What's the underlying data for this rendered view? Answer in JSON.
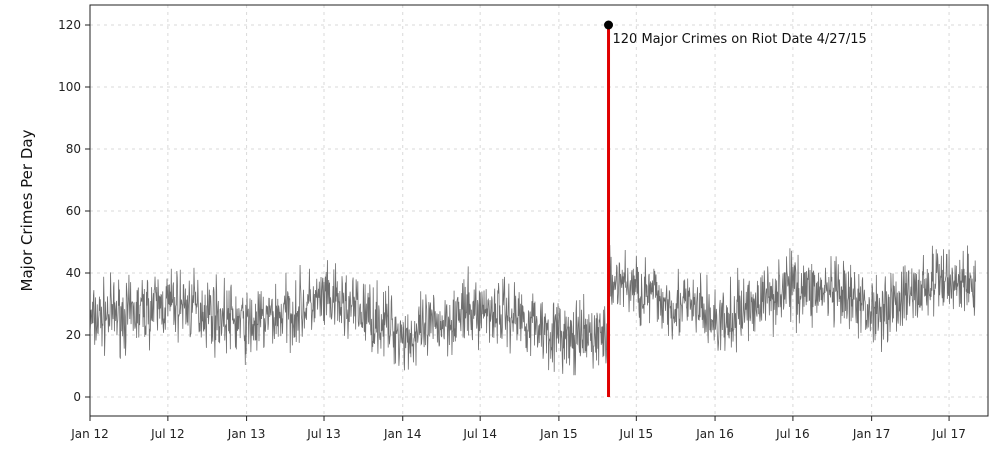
{
  "chart_data": {
    "type": "line",
    "title": "",
    "xlabel": "",
    "ylabel": "Major Crimes Per Day",
    "ylim": [
      0,
      120
    ],
    "yticks": [
      0,
      20,
      40,
      60,
      80,
      100,
      120
    ],
    "xlim": [
      "2012-01-01",
      "2017-09-30"
    ],
    "xticks": [
      {
        "date": "2012-01-01",
        "label": "Jan 12"
      },
      {
        "date": "2012-07-01",
        "label": "Jul 12"
      },
      {
        "date": "2013-01-01",
        "label": "Jan 13"
      },
      {
        "date": "2013-07-01",
        "label": "Jul 13"
      },
      {
        "date": "2014-01-01",
        "label": "Jan 14"
      },
      {
        "date": "2014-07-01",
        "label": "Jul 14"
      },
      {
        "date": "2015-01-01",
        "label": "Jan 15"
      },
      {
        "date": "2015-07-01",
        "label": "Jul 15"
      },
      {
        "date": "2016-01-01",
        "label": "Jan 16"
      },
      {
        "date": "2016-07-01",
        "label": "Jul 16"
      },
      {
        "date": "2017-01-01",
        "label": "Jan 17"
      },
      {
        "date": "2017-07-01",
        "label": "Jul 17"
      }
    ],
    "grid": true,
    "series": [
      {
        "color": "#6e6e6e",
        "x": [
          "2012-01-01",
          "2012-02-01",
          "2012-03-01",
          "2012-04-01",
          "2012-05-01",
          "2012-06-01",
          "2012-07-01",
          "2012-08-01",
          "2012-09-01",
          "2012-10-01",
          "2012-11-01",
          "2012-12-01",
          "2013-01-01",
          "2013-02-01",
          "2013-03-01",
          "2013-04-01",
          "2013-05-01",
          "2013-06-01",
          "2013-07-01",
          "2013-08-01",
          "2013-09-01",
          "2013-10-01",
          "2013-11-01",
          "2013-12-01",
          "2014-01-01",
          "2014-02-01",
          "2014-03-01",
          "2014-04-01",
          "2014-05-01",
          "2014-06-01",
          "2014-07-01",
          "2014-08-01",
          "2014-09-01",
          "2014-10-01",
          "2014-11-01",
          "2014-12-01",
          "2015-01-01",
          "2015-02-01",
          "2015-03-01",
          "2015-04-01",
          "2015-04-26",
          "2015-05-01",
          "2015-06-01",
          "2015-07-01",
          "2015-08-01",
          "2015-09-01",
          "2015-10-01",
          "2015-11-01",
          "2015-12-01",
          "2016-01-01",
          "2016-02-01",
          "2016-03-01",
          "2016-04-01",
          "2016-05-01",
          "2016-06-01",
          "2016-07-01",
          "2016-08-01",
          "2016-09-01",
          "2016-10-01",
          "2016-11-01",
          "2016-12-01",
          "2017-01-01",
          "2017-02-01",
          "2017-03-01",
          "2017-04-01",
          "2017-05-01",
          "2017-06-01",
          "2017-07-01",
          "2017-08-01",
          "2017-09-01"
        ],
        "values": [
          24,
          26,
          27,
          26,
          28,
          29,
          30,
          30,
          29,
          28,
          26,
          25,
          23,
          24,
          26,
          27,
          28,
          30,
          31,
          30,
          29,
          27,
          25,
          23,
          20,
          19,
          22,
          24,
          26,
          27,
          28,
          28,
          27,
          26,
          24,
          22,
          20,
          18,
          19,
          20,
          21,
          38,
          37,
          35,
          33,
          31,
          30,
          29,
          28,
          24,
          23,
          28,
          30,
          32,
          35,
          36,
          35,
          34,
          33,
          31,
          30,
          28,
          29,
          31,
          33,
          35,
          37,
          38,
          37,
          36
        ]
      }
    ],
    "annotation": {
      "date": "2015-04-27",
      "value": 120,
      "text": "120 Major Crimes on Riot Date 4/27/15",
      "color": "#e00000"
    }
  }
}
